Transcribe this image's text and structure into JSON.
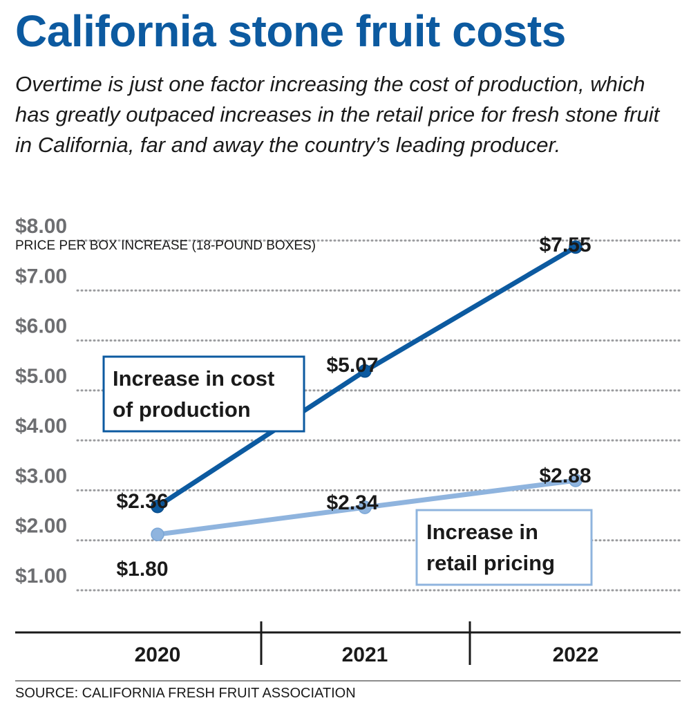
{
  "header": {
    "title": "California stone fruit costs",
    "subtitle": "Overtime is just one factor increasing the cost of production, which has greatly outpaced increases in the retail price for fresh stone fruit in California, far and away the country’s leading producer."
  },
  "chart_data": {
    "type": "line",
    "title": "California stone fruit costs",
    "ylabel": "PRICE PER BOX INCREASE (18-POUND BOXES)",
    "xlabel": "",
    "categories": [
      "2020",
      "2021",
      "2022"
    ],
    "yticks": [
      "$1.00",
      "$2.00",
      "$3.00",
      "$4.00",
      "$5.00",
      "$6.00",
      "$7.00",
      "$8.00"
    ],
    "ytick_values": [
      1,
      2,
      3,
      4,
      5,
      6,
      7,
      8
    ],
    "ylim": [
      0.6,
      8.0
    ],
    "grid": true,
    "series": [
      {
        "name": "Increase in cost of production",
        "name_lines": [
          "Increase in cost",
          "of production"
        ],
        "values": [
          2.36,
          5.07,
          7.55
        ],
        "labels": [
          "$2.36",
          "$5.07",
          "$7.55"
        ],
        "color": "#0c5aa0"
      },
      {
        "name": "Increase in retail pricing",
        "name_lines": [
          "Increase in",
          "retail pricing"
        ],
        "values": [
          1.8,
          2.34,
          2.88
        ],
        "labels": [
          "$1.80",
          "$2.34",
          "$2.88"
        ],
        "color": "#8fb4de"
      }
    ],
    "axis_color": "#6d6e71",
    "grid_color": "#9a9b9e"
  },
  "footer": {
    "source": "SOURCE: CALIFORNIA FRESH FRUIT ASSOCIATION"
  }
}
